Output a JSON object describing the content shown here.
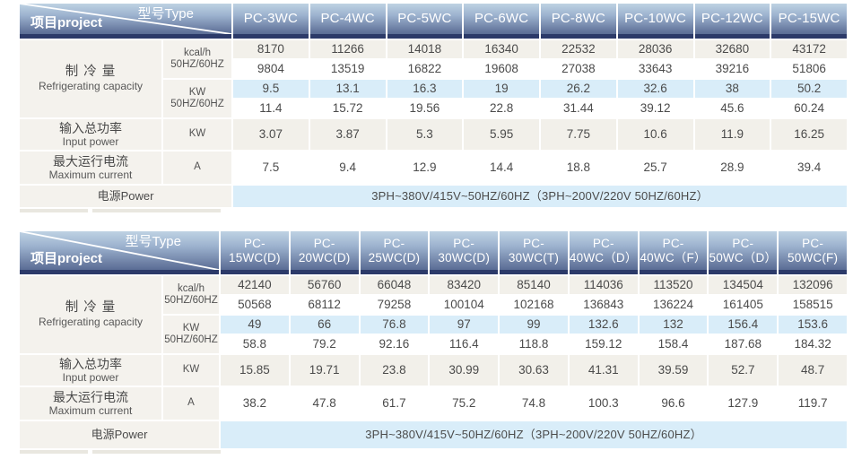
{
  "colors": {
    "header_gradient_top": "#bed2e3",
    "header_gradient_bottom": "#5a6d95",
    "header_navy_bar": "#2c3a69",
    "row_warm_gray": "#f2f0ea",
    "row_light_blue": "#d9edf9",
    "row_white": "#ffffff",
    "text_dark": "#4b4b4b",
    "text_white": "#ffffff"
  },
  "header_corner": {
    "type_label": "型号Type",
    "project_label": "项目project"
  },
  "row_labels": {
    "capacity_cn": "制 冷 量",
    "capacity_en": "Refrigerating capacity",
    "unit_kcal": "kcal/h",
    "unit_hz": "50HZ/60HZ",
    "unit_kw": "KW",
    "input_cn": "输入总功率",
    "input_en": "Input power",
    "input_unit": "KW",
    "current_cn": "最大运行电流",
    "current_en": "Maximum current",
    "current_unit": "A",
    "power_label": "电源Power"
  },
  "tables": [
    {
      "models": [
        [
          "PC-3WC"
        ],
        [
          "PC-4WC"
        ],
        [
          "PC-5WC"
        ],
        [
          "PC-6WC"
        ],
        [
          "PC-8WC"
        ],
        [
          "PC-10WC"
        ],
        [
          "PC-12WC"
        ],
        [
          "PC-15WC"
        ]
      ],
      "kcal_50": [
        "8170",
        "11266",
        "14018",
        "16340",
        "22532",
        "28036",
        "32680",
        "43172"
      ],
      "kcal_60": [
        "9804",
        "13519",
        "16822",
        "19608",
        "27038",
        "33643",
        "39216",
        "51806"
      ],
      "kw_50": [
        "9.5",
        "13.1",
        "16.3",
        "19",
        "26.2",
        "32.6",
        "38",
        "50.2"
      ],
      "kw_60": [
        "11.4",
        "15.72",
        "19.56",
        "22.8",
        "31.44",
        "39.12",
        "45.6",
        "60.24"
      ],
      "input_power": [
        "3.07",
        "3.87",
        "5.3",
        "5.95",
        "7.75",
        "10.6",
        "11.9",
        "16.25"
      ],
      "max_current": [
        "7.5",
        "9.4",
        "12.9",
        "14.4",
        "18.8",
        "25.7",
        "28.9",
        "39.4"
      ],
      "power": "3PH~380V/415V~50HZ/60HZ（3PH~200V/220V  50HZ/60HZ）"
    },
    {
      "models": [
        [
          "PC-",
          "15WC(D)"
        ],
        [
          "PC-",
          "20WC(D)"
        ],
        [
          "PC-",
          "25WC(D)"
        ],
        [
          "PC-",
          "30WC(D)"
        ],
        [
          "PC-",
          "30WC(T)"
        ],
        [
          "PC-",
          "40WC（D）"
        ],
        [
          "PC-",
          "40WC（F）"
        ],
        [
          "PC-",
          "50WC（D）"
        ],
        [
          "PC-",
          "50WC(F)"
        ]
      ],
      "kcal_50": [
        "42140",
        "56760",
        "66048",
        "83420",
        "85140",
        "114036",
        "113520",
        "134504",
        "132096"
      ],
      "kcal_60": [
        "50568",
        "68112",
        "79258",
        "100104",
        "102168",
        "136843",
        "136224",
        "161405",
        "158515"
      ],
      "kw_50": [
        "49",
        "66",
        "76.8",
        "97",
        "99",
        "132.6",
        "132",
        "156.4",
        "153.6"
      ],
      "kw_60": [
        "58.8",
        "79.2",
        "92.16",
        "116.4",
        "118.8",
        "159.12",
        "158.4",
        "187.68",
        "184.32"
      ],
      "input_power": [
        "15.85",
        "19.71",
        "23.8",
        "30.99",
        "30.63",
        "41.31",
        "39.59",
        "52.7",
        "48.7"
      ],
      "max_current": [
        "38.2",
        "47.8",
        "61.7",
        "75.2",
        "74.8",
        "100.3",
        "96.6",
        "127.9",
        "119.7"
      ],
      "power": "3PH~380V/415V~50HZ/60HZ（3PH~200V/220V  50HZ/60HZ）"
    }
  ]
}
